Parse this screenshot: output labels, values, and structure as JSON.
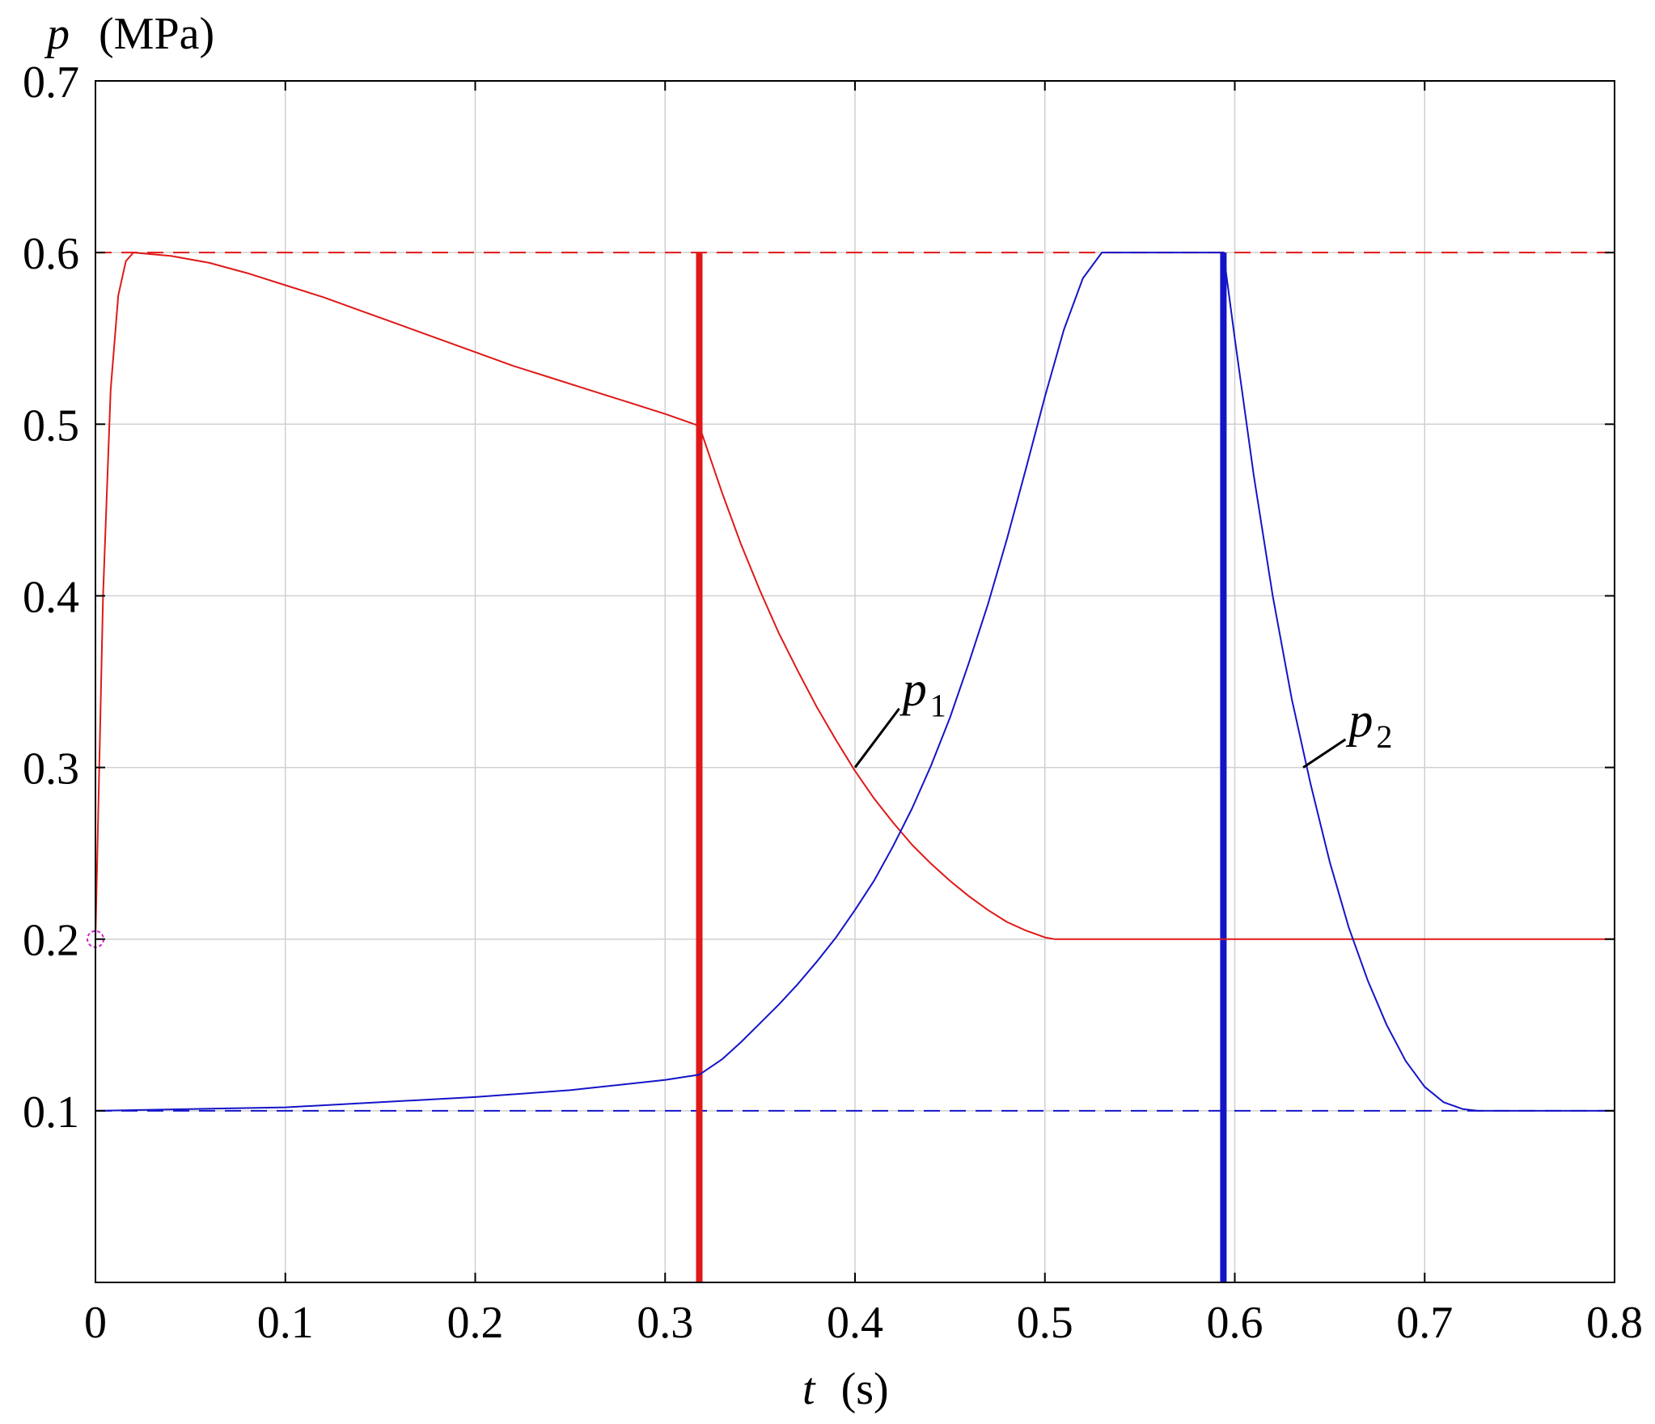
{
  "chart_data": {
    "type": "line",
    "title": "",
    "xlabel": {
      "symbol": "t",
      "unit": "(s)"
    },
    "ylabel": {
      "symbol": "p",
      "unit": "(MPa)"
    },
    "xlim": [
      0,
      0.8
    ],
    "ylim": [
      0,
      0.7
    ],
    "xticks": [
      0,
      0.1,
      0.2,
      0.3,
      0.4,
      0.5,
      0.6,
      0.7,
      0.8
    ],
    "yticks": [
      0.1,
      0.2,
      0.3,
      0.4,
      0.5,
      0.6,
      0.7
    ],
    "xtick_labels": [
      "0",
      "0.1",
      "0.2",
      "0.3",
      "0.4",
      "0.5",
      "0.6",
      "0.7",
      "0.8"
    ],
    "ytick_labels": [
      "0.1",
      "0.2",
      "0.3",
      "0.4",
      "0.5",
      "0.6",
      "0.7"
    ],
    "grid": true,
    "colors": {
      "p1": "#e01818",
      "p2": "#1414c8",
      "grid": "#d0d0d0",
      "marker": "#d020d0"
    },
    "series": [
      {
        "name": "p1",
        "label": {
          "base": "p",
          "sub": "1"
        },
        "color": "#e01818",
        "x": [
          0,
          0.004,
          0.008,
          0.012,
          0.016,
          0.02,
          0.04,
          0.06,
          0.08,
          0.1,
          0.12,
          0.14,
          0.16,
          0.18,
          0.2,
          0.22,
          0.24,
          0.26,
          0.28,
          0.3,
          0.318,
          0.33,
          0.34,
          0.35,
          0.36,
          0.37,
          0.38,
          0.39,
          0.4,
          0.41,
          0.42,
          0.43,
          0.44,
          0.45,
          0.46,
          0.47,
          0.48,
          0.49,
          0.5,
          0.505,
          0.55,
          0.6,
          0.65,
          0.7,
          0.75,
          0.8
        ],
        "y": [
          0.2,
          0.4,
          0.52,
          0.575,
          0.595,
          0.6,
          0.598,
          0.594,
          0.588,
          0.581,
          0.574,
          0.566,
          0.558,
          0.55,
          0.542,
          0.534,
          0.527,
          0.52,
          0.513,
          0.506,
          0.499,
          0.46,
          0.43,
          0.403,
          0.378,
          0.356,
          0.335,
          0.316,
          0.298,
          0.282,
          0.268,
          0.255,
          0.244,
          0.234,
          0.225,
          0.217,
          0.21,
          0.205,
          0.201,
          0.2,
          0.2,
          0.2,
          0.2,
          0.2,
          0.2,
          0.2
        ]
      },
      {
        "name": "p2",
        "label": {
          "base": "p",
          "sub": "2"
        },
        "color": "#1414c8",
        "x": [
          0,
          0.05,
          0.1,
          0.15,
          0.2,
          0.25,
          0.3,
          0.318,
          0.33,
          0.34,
          0.35,
          0.36,
          0.37,
          0.38,
          0.39,
          0.4,
          0.41,
          0.42,
          0.43,
          0.44,
          0.45,
          0.46,
          0.47,
          0.48,
          0.49,
          0.5,
          0.51,
          0.52,
          0.53,
          0.54,
          0.545,
          0.55,
          0.594,
          0.6,
          0.61,
          0.62,
          0.63,
          0.64,
          0.65,
          0.66,
          0.67,
          0.68,
          0.69,
          0.7,
          0.71,
          0.72,
          0.728,
          0.75,
          0.8
        ],
        "y": [
          0.1,
          0.101,
          0.102,
          0.105,
          0.108,
          0.112,
          0.118,
          0.121,
          0.13,
          0.14,
          0.151,
          0.162,
          0.174,
          0.187,
          0.201,
          0.217,
          0.234,
          0.254,
          0.276,
          0.301,
          0.329,
          0.361,
          0.395,
          0.433,
          0.474,
          0.516,
          0.555,
          0.585,
          0.6,
          0.6,
          0.6,
          0.6,
          0.6,
          0.55,
          0.47,
          0.4,
          0.34,
          0.29,
          0.245,
          0.207,
          0.176,
          0.15,
          0.129,
          0.114,
          0.105,
          0.101,
          0.1,
          0.1,
          0.1
        ]
      }
    ],
    "reference_lines": [
      {
        "orientation": "horizontal",
        "value": 0.6,
        "style": "dashed",
        "color": "#e01818"
      },
      {
        "orientation": "horizontal",
        "value": 0.1,
        "style": "dashed",
        "color": "#1414c8"
      },
      {
        "orientation": "vertical",
        "value": 0.318,
        "style": "solid-thick",
        "color": "#e01818"
      },
      {
        "orientation": "vertical",
        "value": 0.594,
        "style": "solid-thick",
        "color": "#1414c8"
      }
    ],
    "marker": {
      "x": 0,
      "y": 0.2,
      "shape": "circle",
      "color": "#d020d0"
    },
    "annotations": [
      {
        "series": "p1",
        "point_x": 0.4,
        "point_y": 0.3,
        "label_x": 0.425,
        "label_y": 0.34
      },
      {
        "series": "p2",
        "point_x": 0.636,
        "point_y": 0.3,
        "label_x": 0.66,
        "label_y": 0.322
      }
    ]
  }
}
